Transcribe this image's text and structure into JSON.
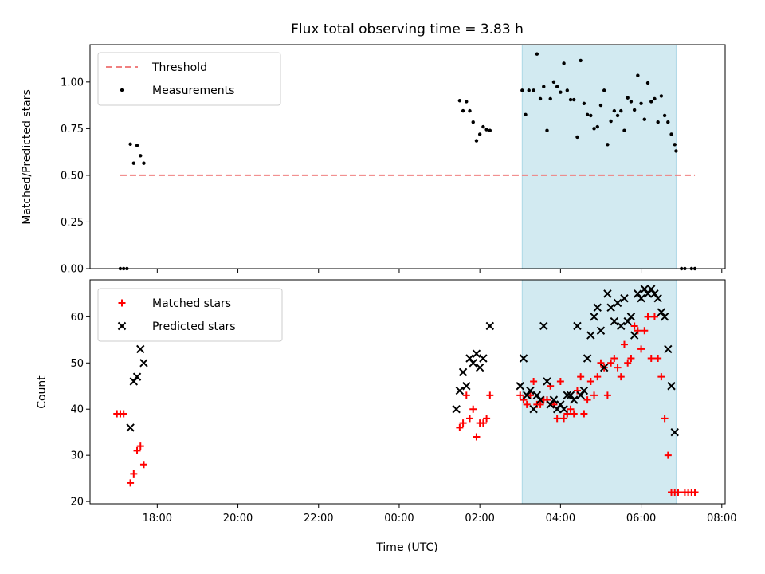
{
  "chart_data": [
    {
      "type": "scatter",
      "title": "Flux total observing time = 3.83 h",
      "ylabel": "Matched/Predicted stars",
      "ylim": [
        0,
        1.2
      ],
      "xlim": [
        "2023-01-01T16:20",
        "2023-01-02T08:05"
      ],
      "yticks": [
        "0.00",
        "0.25",
        "0.50",
        "0.75",
        "1.00"
      ],
      "shaded_span": [
        "2023-01-02T03:03",
        "2023-01-02T06:52"
      ],
      "shaded_color": "#add8e6",
      "legend": {
        "location": "top-left",
        "entries": [
          "Threshold",
          "Measurements"
        ]
      },
      "series": [
        {
          "name": "Threshold",
          "style": "dashed-line",
          "color": "#f08080",
          "x": [
            "2023-01-01T17:05",
            "2023-01-02T07:20"
          ],
          "y": [
            0.5,
            0.5
          ]
        },
        {
          "name": "Measurements",
          "style": "dot",
          "color": "#000000",
          "points": [
            [
              "2023-01-01T17:05",
              0.0
            ],
            [
              "2023-01-01T17:10",
              0.0
            ],
            [
              "2023-01-01T17:15",
              0.0
            ],
            [
              "2023-01-01T17:20",
              0.667
            ],
            [
              "2023-01-01T17:25",
              0.565
            ],
            [
              "2023-01-01T17:30",
              0.66
            ],
            [
              "2023-01-01T17:35",
              0.605
            ],
            [
              "2023-01-01T17:40",
              0.565
            ],
            [
              "2023-01-02T01:30",
              0.9
            ],
            [
              "2023-01-02T01:35",
              0.845
            ],
            [
              "2023-01-02T01:40",
              0.895
            ],
            [
              "2023-01-02T01:45",
              0.845
            ],
            [
              "2023-01-02T01:50",
              0.785
            ],
            [
              "2023-01-02T01:55",
              0.685
            ],
            [
              "2023-01-02T02:00",
              0.72
            ],
            [
              "2023-01-02T02:05",
              0.76
            ],
            [
              "2023-01-02T02:10",
              0.745
            ],
            [
              "2023-01-02T02:15",
              0.74
            ],
            [
              "2023-01-02T03:03",
              0.955
            ],
            [
              "2023-01-02T03:08",
              0.825
            ],
            [
              "2023-01-02T03:13",
              0.955
            ],
            [
              "2023-01-02T03:20",
              0.955
            ],
            [
              "2023-01-02T03:25",
              1.15
            ],
            [
              "2023-01-02T03:30",
              0.91
            ],
            [
              "2023-01-02T03:35",
              0.975
            ],
            [
              "2023-01-02T03:40",
              0.74
            ],
            [
              "2023-01-02T03:45",
              0.91
            ],
            [
              "2023-01-02T03:50",
              1.0
            ],
            [
              "2023-01-02T03:55",
              0.975
            ],
            [
              "2023-01-02T04:00",
              0.945
            ],
            [
              "2023-01-02T04:05",
              1.1
            ],
            [
              "2023-01-02T04:10",
              0.955
            ],
            [
              "2023-01-02T04:15",
              0.905
            ],
            [
              "2023-01-02T04:20",
              0.905
            ],
            [
              "2023-01-02T04:25",
              0.705
            ],
            [
              "2023-01-02T04:30",
              1.115
            ],
            [
              "2023-01-02T04:35",
              0.885
            ],
            [
              "2023-01-02T04:40",
              0.825
            ],
            [
              "2023-01-02T04:45",
              0.82
            ],
            [
              "2023-01-02T04:50",
              0.75
            ],
            [
              "2023-01-02T04:55",
              0.76
            ],
            [
              "2023-01-02T05:00",
              0.875
            ],
            [
              "2023-01-02T05:05",
              0.955
            ],
            [
              "2023-01-02T05:10",
              0.665
            ],
            [
              "2023-01-02T05:15",
              0.79
            ],
            [
              "2023-01-02T05:20",
              0.845
            ],
            [
              "2023-01-02T05:25",
              0.82
            ],
            [
              "2023-01-02T05:30",
              0.845
            ],
            [
              "2023-01-02T05:35",
              0.74
            ],
            [
              "2023-01-02T05:40",
              0.915
            ],
            [
              "2023-01-02T05:45",
              0.895
            ],
            [
              "2023-01-02T05:50",
              0.85
            ],
            [
              "2023-01-02T05:55",
              1.035
            ],
            [
              "2023-01-02T06:00",
              0.885
            ],
            [
              "2023-01-02T06:05",
              0.8
            ],
            [
              "2023-01-02T06:10",
              0.995
            ],
            [
              "2023-01-02T06:15",
              0.895
            ],
            [
              "2023-01-02T06:20",
              0.91
            ],
            [
              "2023-01-02T06:25",
              0.785
            ],
            [
              "2023-01-02T06:30",
              0.925
            ],
            [
              "2023-01-02T06:35",
              0.82
            ],
            [
              "2023-01-02T06:40",
              0.785
            ],
            [
              "2023-01-02T06:45",
              0.72
            ],
            [
              "2023-01-02T06:50",
              0.665
            ],
            [
              "2023-01-02T06:52",
              0.63
            ],
            [
              "2023-01-02T07:00",
              0.0
            ],
            [
              "2023-01-02T07:05",
              0.0
            ],
            [
              "2023-01-02T07:15",
              0.0
            ],
            [
              "2023-01-02T07:20",
              0.0
            ]
          ]
        }
      ]
    },
    {
      "type": "scatter",
      "xlabel": "Time (UTC)",
      "ylabel": "Count",
      "ylim": [
        19.5,
        68
      ],
      "xlim": [
        "2023-01-01T16:20",
        "2023-01-02T08:05"
      ],
      "yticks": [
        "20",
        "30",
        "40",
        "50",
        "60"
      ],
      "xticks": [
        {
          "t": "2023-01-01T18:00",
          "label": "18:00"
        },
        {
          "t": "2023-01-01T20:00",
          "label": "20:00"
        },
        {
          "t": "2023-01-01T22:00",
          "label": "22:00"
        },
        {
          "t": "2023-01-02T00:00",
          "label": "00:00"
        },
        {
          "t": "2023-01-02T02:00",
          "label": "02:00"
        },
        {
          "t": "2023-01-02T04:00",
          "label": "04:00"
        },
        {
          "t": "2023-01-02T06:00",
          "label": "06:00"
        },
        {
          "t": "2023-01-02T08:00",
          "label": "08:00"
        }
      ],
      "shaded_span": [
        "2023-01-02T03:03",
        "2023-01-02T06:52"
      ],
      "shaded_color": "#add8e6",
      "legend": {
        "location": "top-left",
        "entries": [
          "Matched stars",
          "Predicted stars"
        ]
      },
      "series": [
        {
          "name": "Matched stars",
          "style": "plus",
          "color": "#ff0000",
          "points": [
            [
              "2023-01-01T17:00",
              39
            ],
            [
              "2023-01-01T17:05",
              39
            ],
            [
              "2023-01-01T17:10",
              39
            ],
            [
              "2023-01-01T17:20",
              24
            ],
            [
              "2023-01-01T17:25",
              26
            ],
            [
              "2023-01-01T17:30",
              31
            ],
            [
              "2023-01-01T17:35",
              32
            ],
            [
              "2023-01-01T17:40",
              28
            ],
            [
              "2023-01-02T01:30",
              36
            ],
            [
              "2023-01-02T01:35",
              37
            ],
            [
              "2023-01-02T01:40",
              43
            ],
            [
              "2023-01-02T01:45",
              38
            ],
            [
              "2023-01-02T01:50",
              40
            ],
            [
              "2023-01-02T01:55",
              34
            ],
            [
              "2023-01-02T02:00",
              37
            ],
            [
              "2023-01-02T02:05",
              37
            ],
            [
              "2023-01-02T02:10",
              38
            ],
            [
              "2023-01-02T02:15",
              43
            ],
            [
              "2023-01-02T03:00",
              43
            ],
            [
              "2023-01-02T03:05",
              42
            ],
            [
              "2023-01-02T03:10",
              41
            ],
            [
              "2023-01-02T03:15",
              43
            ],
            [
              "2023-01-02T03:20",
              46
            ],
            [
              "2023-01-02T03:25",
              41
            ],
            [
              "2023-01-02T03:30",
              41
            ],
            [
              "2023-01-02T03:35",
              42
            ],
            [
              "2023-01-02T03:40",
              42
            ],
            [
              "2023-01-02T03:45",
              45
            ],
            [
              "2023-01-02T03:50",
              41
            ],
            [
              "2023-01-02T03:55",
              38
            ],
            [
              "2023-01-02T04:00",
              46
            ],
            [
              "2023-01-02T04:05",
              38
            ],
            [
              "2023-01-02T04:10",
              39
            ],
            [
              "2023-01-02T04:15",
              40
            ],
            [
              "2023-01-02T04:20",
              39
            ],
            [
              "2023-01-02T04:25",
              44
            ],
            [
              "2023-01-02T04:30",
              47
            ],
            [
              "2023-01-02T04:35",
              39
            ],
            [
              "2023-01-02T04:40",
              42
            ],
            [
              "2023-01-02T04:45",
              46
            ],
            [
              "2023-01-02T04:50",
              43
            ],
            [
              "2023-01-02T04:55",
              47
            ],
            [
              "2023-01-02T05:00",
              50
            ],
            [
              "2023-01-02T05:05",
              49
            ],
            [
              "2023-01-02T05:10",
              43
            ],
            [
              "2023-01-02T05:15",
              50
            ],
            [
              "2023-01-02T05:20",
              51
            ],
            [
              "2023-01-02T05:25",
              49
            ],
            [
              "2023-01-02T05:30",
              47
            ],
            [
              "2023-01-02T05:35",
              54
            ],
            [
              "2023-01-02T05:40",
              50
            ],
            [
              "2023-01-02T05:45",
              51
            ],
            [
              "2023-01-02T05:50",
              58
            ],
            [
              "2023-01-02T05:55",
              57
            ],
            [
              "2023-01-02T06:00",
              53
            ],
            [
              "2023-01-02T06:05",
              57
            ],
            [
              "2023-01-02T06:10",
              60
            ],
            [
              "2023-01-02T06:15",
              51
            ],
            [
              "2023-01-02T06:20",
              60
            ],
            [
              "2023-01-02T06:25",
              51
            ],
            [
              "2023-01-02T06:30",
              47
            ],
            [
              "2023-01-02T06:35",
              38
            ],
            [
              "2023-01-02T06:40",
              30
            ],
            [
              "2023-01-02T06:45",
              22
            ],
            [
              "2023-01-02T06:50",
              22
            ],
            [
              "2023-01-02T06:55",
              22
            ],
            [
              "2023-01-02T07:05",
              22
            ],
            [
              "2023-01-02T07:10",
              22
            ],
            [
              "2023-01-02T07:15",
              22
            ],
            [
              "2023-01-02T07:20",
              22
            ]
          ]
        },
        {
          "name": "Predicted stars",
          "style": "cross",
          "color": "#000000",
          "points": [
            [
              "2023-01-01T17:20",
              36
            ],
            [
              "2023-01-01T17:25",
              46
            ],
            [
              "2023-01-01T17:30",
              47
            ],
            [
              "2023-01-01T17:35",
              53
            ],
            [
              "2023-01-01T17:40",
              50
            ],
            [
              "2023-01-02T01:25",
              40
            ],
            [
              "2023-01-02T01:30",
              44
            ],
            [
              "2023-01-02T01:35",
              48
            ],
            [
              "2023-01-02T01:40",
              45
            ],
            [
              "2023-01-02T01:45",
              51
            ],
            [
              "2023-01-02T01:50",
              50
            ],
            [
              "2023-01-02T01:55",
              52
            ],
            [
              "2023-01-02T02:00",
              49
            ],
            [
              "2023-01-02T02:05",
              51
            ],
            [
              "2023-01-02T02:15",
              58
            ],
            [
              "2023-01-02T03:00",
              45
            ],
            [
              "2023-01-02T03:05",
              51
            ],
            [
              "2023-01-02T03:10",
              43
            ],
            [
              "2023-01-02T03:15",
              44
            ],
            [
              "2023-01-02T03:20",
              40
            ],
            [
              "2023-01-02T03:25",
              43
            ],
            [
              "2023-01-02T03:30",
              42
            ],
            [
              "2023-01-02T03:35",
              58
            ],
            [
              "2023-01-02T03:40",
              46
            ],
            [
              "2023-01-02T03:45",
              41
            ],
            [
              "2023-01-02T03:50",
              42
            ],
            [
              "2023-01-02T03:55",
              40
            ],
            [
              "2023-01-02T04:00",
              41
            ],
            [
              "2023-01-02T04:05",
              40
            ],
            [
              "2023-01-02T04:10",
              43
            ],
            [
              "2023-01-02T04:15",
              43
            ],
            [
              "2023-01-02T04:20",
              42
            ],
            [
              "2023-01-02T04:25",
              58
            ],
            [
              "2023-01-02T04:30",
              43
            ],
            [
              "2023-01-02T04:35",
              44
            ],
            [
              "2023-01-02T04:40",
              51
            ],
            [
              "2023-01-02T04:45",
              56
            ],
            [
              "2023-01-02T04:50",
              60
            ],
            [
              "2023-01-02T04:55",
              62
            ],
            [
              "2023-01-02T05:00",
              57
            ],
            [
              "2023-01-02T05:05",
              49
            ],
            [
              "2023-01-02T05:10",
              65
            ],
            [
              "2023-01-02T05:15",
              62
            ],
            [
              "2023-01-02T05:20",
              59
            ],
            [
              "2023-01-02T05:25",
              63
            ],
            [
              "2023-01-02T05:30",
              58
            ],
            [
              "2023-01-02T05:35",
              64
            ],
            [
              "2023-01-02T05:40",
              59
            ],
            [
              "2023-01-02T05:45",
              60
            ],
            [
              "2023-01-02T05:50",
              56
            ],
            [
              "2023-01-02T05:55",
              65
            ],
            [
              "2023-01-02T06:00",
              64
            ],
            [
              "2023-01-02T06:05",
              66
            ],
            [
              "2023-01-02T06:10",
              65
            ],
            [
              "2023-01-02T06:15",
              66
            ],
            [
              "2023-01-02T06:20",
              65
            ],
            [
              "2023-01-02T06:25",
              64
            ],
            [
              "2023-01-02T06:30",
              61
            ],
            [
              "2023-01-02T06:35",
              60
            ],
            [
              "2023-01-02T06:40",
              53
            ],
            [
              "2023-01-02T06:45",
              45
            ],
            [
              "2023-01-02T06:50",
              35
            ]
          ]
        }
      ]
    }
  ]
}
